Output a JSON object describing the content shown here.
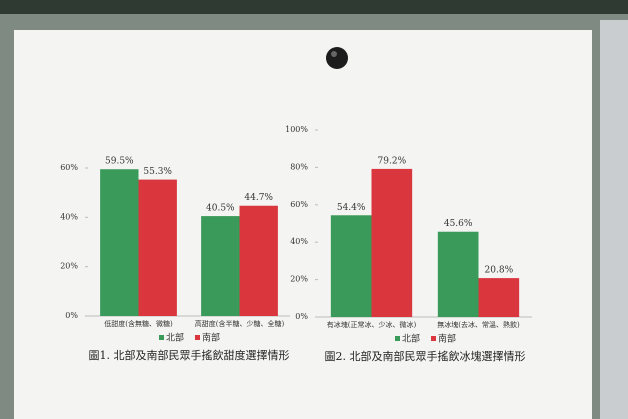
{
  "chart_data": [
    {
      "type": "bar",
      "title": "圖1. 北部及南部民眾手搖飲甜度選擇情形",
      "categories": [
        "低甜度(含無糖、微糖)",
        "高甜度(含半糖、少糖、全糖)"
      ],
      "series": [
        {
          "name": "北部",
          "color": "#3a9a5a",
          "values": [
            59.5,
            40.5
          ],
          "value_labels": [
            "59.5%",
            "40.5%"
          ]
        },
        {
          "name": "南部",
          "color": "#d9363e",
          "values": [
            55.3,
            44.7
          ],
          "value_labels": [
            "55.3%",
            "44.7%"
          ]
        }
      ],
      "ylim": [
        0,
        60
      ],
      "yticks": [
        {
          "value": 0,
          "label": "0%"
        },
        {
          "value": 20,
          "label": "20%"
        },
        {
          "value": 40,
          "label": "40%"
        },
        {
          "value": 60,
          "label": "60%"
        }
      ]
    },
    {
      "type": "bar",
      "title": "圖2. 北部及南部民眾手搖飲冰塊選擇情形",
      "categories": [
        "有冰塊(正常冰、少冰、微冰)",
        "無冰塊(去冰、常溫、熱飲)"
      ],
      "series": [
        {
          "name": "北部",
          "color": "#3a9a5a",
          "values": [
            54.4,
            45.6
          ],
          "value_labels": [
            "54.4%",
            "45.6%"
          ]
        },
        {
          "name": "南部",
          "color": "#d9363e",
          "values": [
            79.2,
            20.8
          ],
          "value_labels": [
            "79.2%",
            "20.8%"
          ]
        }
      ],
      "ylim": [
        0,
        100
      ],
      "yticks": [
        {
          "value": 0,
          "label": "0%"
        },
        {
          "value": 20,
          "label": "20%"
        },
        {
          "value": 40,
          "label": "40%"
        },
        {
          "value": 60,
          "label": "60%"
        },
        {
          "value": 80,
          "label": "80%"
        },
        {
          "value": 100,
          "label": "100%"
        }
      ]
    }
  ]
}
